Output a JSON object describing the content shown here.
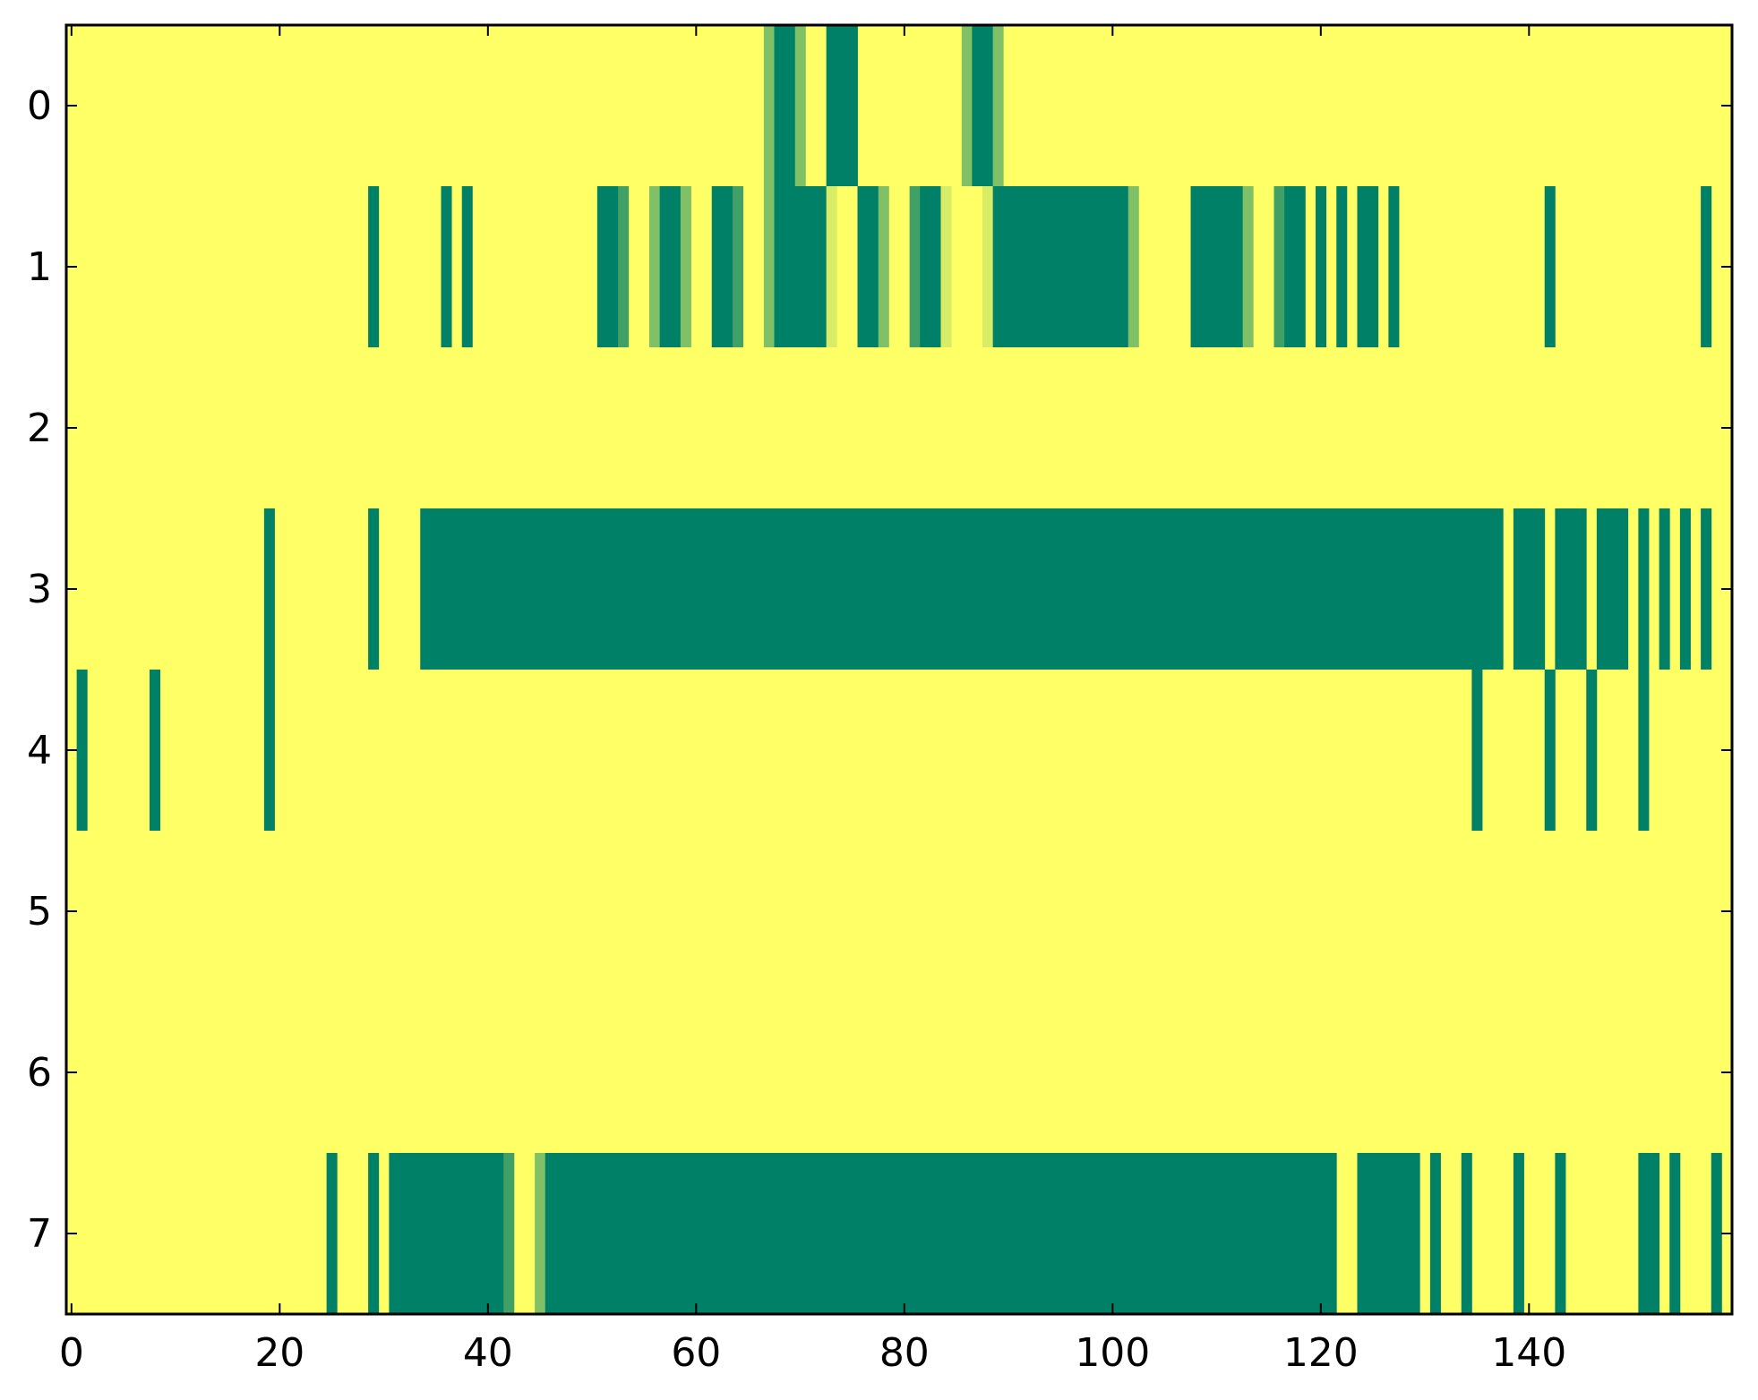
{
  "chart_data": {
    "type": "heatmap",
    "title": "",
    "xlabel": "",
    "ylabel": "",
    "xlim": [
      -0.5,
      159.5
    ],
    "ylim": [
      7.5,
      -0.5
    ],
    "x_ticks": [
      0,
      20,
      40,
      60,
      80,
      100,
      120,
      140
    ],
    "y_ticks": [
      0,
      1,
      2,
      3,
      4,
      5,
      6,
      7
    ],
    "value_range": [
      0,
      1
    ],
    "colormap": "summer_r",
    "colors": {
      "low": "#ffff66",
      "high": "#008066",
      "light_mid": "#d9ec66",
      "mid": "#80c066",
      "dark_mid": "#40a066"
    },
    "grid": false,
    "n_rows": 8,
    "n_cols": 160,
    "cells_note": "Each row lists [start_col, end_col, value] runs; columns not listed have value 0.",
    "rows": [
      {
        "row": 0,
        "runs": [
          [
            67,
            67,
            0.5
          ],
          [
            68,
            69,
            1
          ],
          [
            70,
            70,
            0.5
          ],
          [
            73,
            75,
            1
          ],
          [
            86,
            86,
            0.5
          ],
          [
            87,
            88,
            1
          ],
          [
            89,
            89,
            0.5
          ]
        ]
      },
      {
        "row": 1,
        "runs": [
          [
            29,
            29,
            1
          ],
          [
            36,
            36,
            1
          ],
          [
            38,
            38,
            1
          ],
          [
            51,
            52,
            1
          ],
          [
            53,
            53,
            0.75
          ],
          [
            56,
            56,
            0.5
          ],
          [
            57,
            58,
            1
          ],
          [
            59,
            59,
            0.5
          ],
          [
            62,
            63,
            1
          ],
          [
            64,
            64,
            0.75
          ],
          [
            67,
            67,
            0.5
          ],
          [
            68,
            72,
            1
          ],
          [
            73,
            73,
            0.15
          ],
          [
            76,
            77,
            1
          ],
          [
            78,
            78,
            0.5
          ],
          [
            81,
            81,
            0.75
          ],
          [
            82,
            83,
            1
          ],
          [
            84,
            84,
            0.15
          ],
          [
            88,
            88,
            0.15
          ],
          [
            89,
            101,
            1
          ],
          [
            102,
            102,
            0.5
          ],
          [
            108,
            112,
            1
          ],
          [
            113,
            113,
            0.5
          ],
          [
            116,
            116,
            0.75
          ],
          [
            117,
            118,
            1
          ],
          [
            120,
            120,
            1
          ],
          [
            122,
            122,
            1
          ],
          [
            124,
            125,
            1
          ],
          [
            127,
            127,
            1
          ],
          [
            142,
            142,
            1
          ],
          [
            157,
            157,
            1
          ]
        ]
      },
      {
        "row": 2,
        "runs": []
      },
      {
        "row": 3,
        "runs": [
          [
            19,
            19,
            1
          ],
          [
            29,
            29,
            1
          ],
          [
            34,
            137,
            1
          ],
          [
            139,
            141,
            1
          ],
          [
            143,
            145,
            1
          ],
          [
            147,
            149,
            1
          ],
          [
            151,
            151,
            1
          ],
          [
            153,
            153,
            1
          ],
          [
            155,
            155,
            1
          ],
          [
            157,
            157,
            1
          ]
        ]
      },
      {
        "row": 4,
        "runs": [
          [
            1,
            1,
            1
          ],
          [
            8,
            8,
            1
          ],
          [
            19,
            19,
            1
          ],
          [
            135,
            135,
            1
          ],
          [
            142,
            142,
            1
          ],
          [
            146,
            146,
            1
          ],
          [
            151,
            151,
            1
          ]
        ]
      },
      {
        "row": 5,
        "runs": []
      },
      {
        "row": 6,
        "runs": []
      },
      {
        "row": 7,
        "runs": [
          [
            25,
            25,
            1
          ],
          [
            29,
            29,
            1
          ],
          [
            31,
            41,
            1
          ],
          [
            42,
            42,
            0.75
          ],
          [
            45,
            45,
            0.5
          ],
          [
            46,
            121,
            1
          ],
          [
            124,
            129,
            1
          ],
          [
            131,
            131,
            1
          ],
          [
            134,
            134,
            1
          ],
          [
            139,
            139,
            1
          ],
          [
            143,
            143,
            1
          ],
          [
            151,
            152,
            1
          ],
          [
            154,
            154,
            1
          ],
          [
            158,
            158,
            1
          ]
        ]
      }
    ]
  }
}
